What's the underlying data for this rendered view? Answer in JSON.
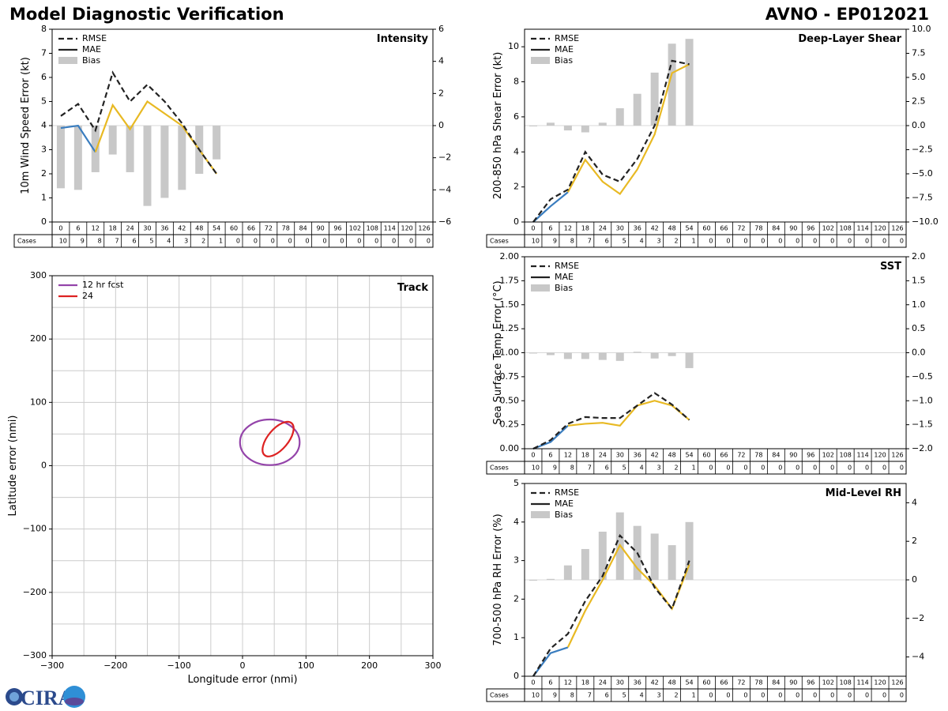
{
  "page": {
    "title": "Model Diagnostic Verification",
    "subtitle": "AVNO - EP012021",
    "logo_text": "CIRA"
  },
  "colors": {
    "rmse": "#222222",
    "mae_early": "#3a7dbf",
    "mae": "#e8b923",
    "bias": "#c8c8c8",
    "grid": "#cccccc",
    "track_12": "#9444aa",
    "track_24": "#dd2222"
  },
  "case_table": {
    "row_label": "Cases",
    "hours": [
      "0",
      "6",
      "12",
      "18",
      "24",
      "30",
      "36",
      "42",
      "48",
      "54",
      "60",
      "66",
      "72",
      "78",
      "84",
      "90",
      "96",
      "102",
      "108",
      "114",
      "120",
      "126"
    ],
    "counts": [
      "10",
      "9",
      "8",
      "7",
      "6",
      "5",
      "4",
      "3",
      "2",
      "1",
      "0",
      "0",
      "0",
      "0",
      "0",
      "0",
      "0",
      "0",
      "0",
      "0",
      "0",
      "0"
    ]
  },
  "chart_data": [
    {
      "id": "intensity",
      "type": "line",
      "title": "Intensity",
      "ylabel": "10m Wind Speed Error (kt)",
      "ylim": [
        0,
        8
      ],
      "yticks": [
        "0",
        "1",
        "2",
        "3",
        "4",
        "5",
        "6",
        "7",
        "8"
      ],
      "y2lim": [
        -6,
        6
      ],
      "y2ticks": [
        "−6",
        "−4",
        "−2",
        "0",
        "2",
        "4",
        "6"
      ],
      "legend": [
        "RMSE",
        "MAE",
        "Bias"
      ],
      "x": [
        0,
        6,
        12,
        18,
        24,
        30,
        36,
        42,
        48,
        54
      ],
      "rmse": [
        4.4,
        4.9,
        3.8,
        6.2,
        5.0,
        5.7,
        5.0,
        4.1,
        3.0,
        2.0
      ],
      "mae": [
        3.9,
        4.0,
        2.9,
        4.85,
        3.85,
        5.0,
        4.5,
        4.0,
        3.0,
        2.0
      ],
      "bias": [
        -3.9,
        -4.0,
        -2.9,
        -1.8,
        -2.9,
        -5.0,
        -4.5,
        -4.0,
        -3.0,
        -2.1
      ]
    },
    {
      "id": "shear",
      "type": "line",
      "title": "Deep-Layer Shear",
      "ylabel": "200-850 hPa Shear Error (kt)",
      "ylim": [
        0,
        11
      ],
      "yticks": [
        "0",
        "2",
        "4",
        "6",
        "8",
        "10"
      ],
      "y2lim": [
        -10,
        10
      ],
      "y2ticks": [
        "−10.0",
        "−7.5",
        "−5.0",
        "−2.5",
        "0.0",
        "2.5",
        "5.0",
        "7.5",
        "10.0"
      ],
      "legend": [
        "RMSE",
        "MAE",
        "Bias"
      ],
      "x": [
        0,
        6,
        12,
        18,
        24,
        30,
        36,
        42,
        48,
        54
      ],
      "rmse": [
        0,
        1.3,
        1.85,
        4.0,
        2.7,
        2.3,
        3.6,
        5.5,
        9.2,
        9.0
      ],
      "mae": [
        0,
        0.9,
        1.7,
        3.55,
        2.3,
        1.6,
        3.0,
        5.0,
        8.5,
        9.0
      ],
      "bias": [
        0,
        0.3,
        -0.5,
        -0.7,
        0.3,
        1.8,
        3.3,
        5.5,
        8.5,
        9.0
      ]
    },
    {
      "id": "sst",
      "type": "line",
      "title": "SST",
      "ylabel": "Sea Surface Temp Error (°C)",
      "ylim": [
        0,
        2
      ],
      "yticks": [
        "0.00",
        "0.25",
        "0.50",
        "0.75",
        "1.00",
        "1.25",
        "1.50",
        "1.75",
        "2.00"
      ],
      "y2lim": [
        -2,
        2
      ],
      "y2ticks": [
        "−2.0",
        "−1.5",
        "−1.0",
        "−0.5",
        "0.0",
        "0.5",
        "1.0",
        "1.5",
        "2.0"
      ],
      "legend": [
        "RMSE",
        "MAE",
        "Bias"
      ],
      "x": [
        0,
        6,
        12,
        18,
        24,
        30,
        36,
        42,
        48,
        54
      ],
      "rmse": [
        0,
        0.09,
        0.26,
        0.33,
        0.32,
        0.32,
        0.45,
        0.58,
        0.46,
        0.3
      ],
      "mae": [
        0,
        0.07,
        0.24,
        0.26,
        0.27,
        0.24,
        0.45,
        0.5,
        0.45,
        0.3
      ],
      "bias": [
        0,
        -0.05,
        -0.13,
        -0.13,
        -0.15,
        -0.17,
        0.02,
        -0.12,
        -0.07,
        -0.32
      ]
    },
    {
      "id": "rh",
      "type": "line",
      "title": "Mid-Level RH",
      "ylabel": "700-500 hPa RH Error (%)",
      "ylim": [
        0,
        5
      ],
      "yticks": [
        "0",
        "1",
        "2",
        "3",
        "4",
        "5"
      ],
      "y2lim": [
        -5,
        5
      ],
      "y2ticks": [
        "−4",
        "−2",
        "0",
        "2",
        "4"
      ],
      "legend": [
        "RMSE",
        "MAE",
        "Bias"
      ],
      "x": [
        0,
        6,
        12,
        18,
        24,
        30,
        36,
        42,
        48,
        54
      ],
      "rmse": [
        0,
        0.72,
        1.1,
        1.95,
        2.6,
        3.65,
        3.2,
        2.3,
        1.75,
        3.0
      ],
      "mae": [
        0,
        0.6,
        0.75,
        1.7,
        2.5,
        3.4,
        2.8,
        2.35,
        1.75,
        2.9
      ],
      "bias": [
        0,
        0.05,
        0.75,
        1.6,
        2.5,
        3.5,
        2.8,
        2.4,
        1.8,
        3.0
      ]
    },
    {
      "id": "track",
      "type": "scatter",
      "title": "Track",
      "xlabel": "Longitude error (nmi)",
      "ylabel": "Latitude error (nmi)",
      "xlim": [
        -300,
        300
      ],
      "ylim": [
        -300,
        300
      ],
      "xticks": [
        "−300",
        "−200",
        "−100",
        "0",
        "100",
        "200",
        "300"
      ],
      "yticks": [
        "−300",
        "−200",
        "−100",
        "0",
        "100",
        "200",
        "300"
      ],
      "legend": [
        "12 hr fcst",
        "24"
      ],
      "ellipses": [
        {
          "name": "12 hr fcst",
          "cx": 43,
          "cy": 37,
          "rx": 47,
          "ry": 36,
          "angle": 0
        },
        {
          "name": "24",
          "cx": 56,
          "cy": 42,
          "rx": 33,
          "ry": 16,
          "angle": 50
        }
      ]
    }
  ]
}
